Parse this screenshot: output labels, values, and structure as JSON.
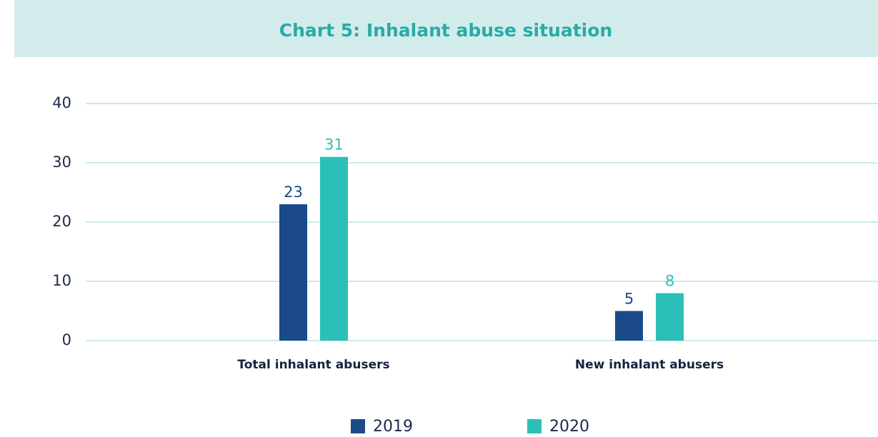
{
  "chart_data": {
    "type": "bar",
    "title": "Chart 5: Inhalant abuse situation",
    "categories": [
      "Total inhalant abusers",
      "New inhalant abusers"
    ],
    "series": [
      {
        "name": "2019",
        "color": "#1a4a8a",
        "values": [
          23,
          5
        ]
      },
      {
        "name": "2020",
        "color": "#2bbfb8",
        "values": [
          31,
          8
        ]
      }
    ],
    "ylim": [
      0,
      40
    ],
    "yticks": [
      0,
      10,
      20,
      30,
      40
    ],
    "grid": true,
    "grid_color": "#c8ebea",
    "title_color": "#2aaaa6",
    "title_background": "#d2ecec",
    "legend": "bottom"
  }
}
